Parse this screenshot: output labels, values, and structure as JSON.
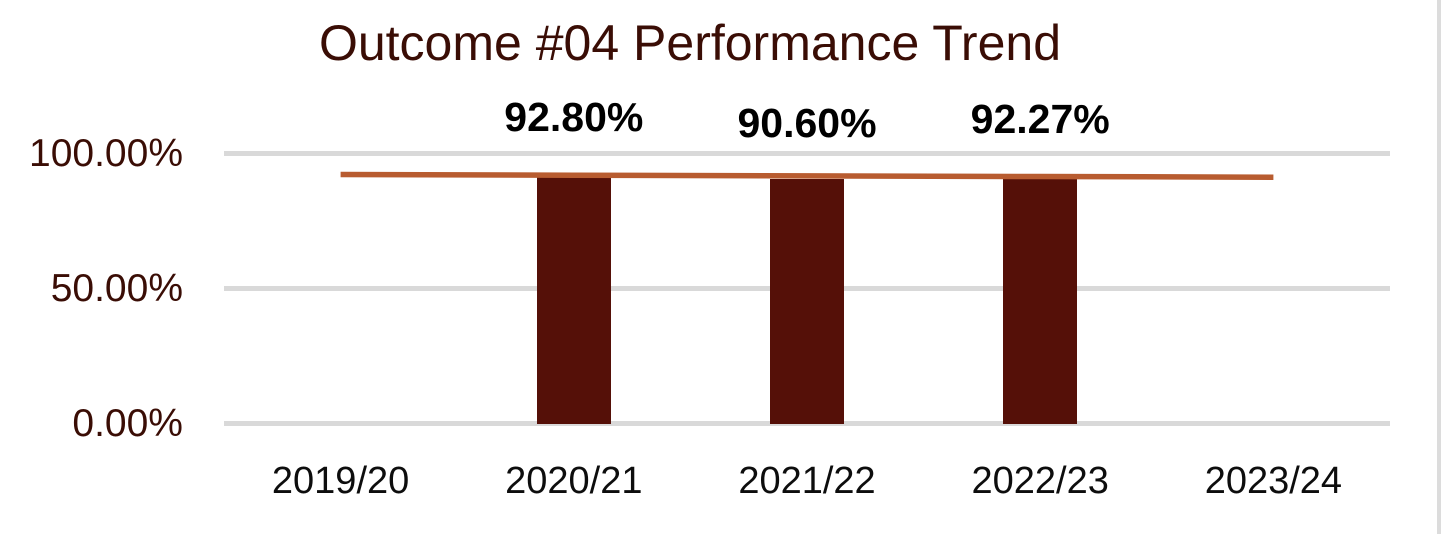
{
  "chart_data": {
    "type": "bar",
    "title": "Outcome #04 Performance Trend",
    "categories": [
      "2019/20",
      "2020/21",
      "2021/22",
      "2022/23",
      "2023/24"
    ],
    "series": [
      {
        "name": "performance-bars",
        "type": "bar",
        "values": [
          null,
          92.8,
          90.6,
          92.27,
          null
        ],
        "data_labels": [
          "",
          "92.80%",
          "90.60%",
          "92.27%",
          ""
        ]
      },
      {
        "name": "trendline",
        "type": "line",
        "values": [
          92.4,
          92.15,
          91.9,
          91.65,
          91.4
        ]
      }
    ],
    "xlabel": "",
    "ylabel": "",
    "ylim": [
      0,
      100
    ],
    "y_ticks": [
      {
        "value": 100,
        "label": "100.00%"
      },
      {
        "value": 50,
        "label": "50.00%"
      },
      {
        "value": 0,
        "label": "0.00%"
      }
    ],
    "grid": true,
    "legend": "none",
    "colors": {
      "bar": "#551008",
      "line": "#B85C30",
      "gridline": "#D9D9D9",
      "title_text": "#3A0D05",
      "y_tick_text": "#3A0D05",
      "x_tick_text": "#0D0D0D",
      "data_label_text": "#000000"
    }
  }
}
